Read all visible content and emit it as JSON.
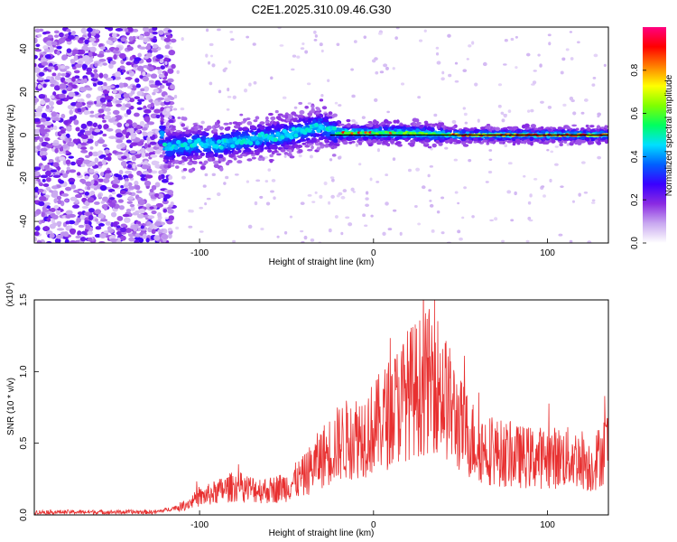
{
  "title": "C2E1.2025.310.09.46.G30",
  "chart_data": [
    {
      "type": "heatmap",
      "name": "spectrogram",
      "xlabel": "Height of straight line (km)",
      "ylabel": "Frequency (Hz)",
      "xlim": [
        -195,
        135
      ],
      "ylim": [
        -50,
        50
      ],
      "xticks": [
        -100,
        0,
        100
      ],
      "yticks": [
        -40,
        -20,
        0,
        20,
        40
      ],
      "xtick_labels": [
        "-100",
        "0",
        "100"
      ],
      "ytick_labels": [
        "-40",
        "-20",
        "0",
        "20",
        "40"
      ],
      "colorbar": {
        "label": "Normalized spectral amplitude",
        "range": [
          0,
          1
        ],
        "ticks": [
          0.0,
          0.2,
          0.4,
          0.6,
          0.8
        ],
        "tick_labels": [
          "0.0",
          "0.2",
          "0.4",
          "0.6",
          "0.8"
        ],
        "colors": [
          "#ffffff",
          "#c9a8f0",
          "#8a2be2",
          "#3a00ff",
          "#0060ff",
          "#00e0ff",
          "#00ff60",
          "#80ff00",
          "#ffff00",
          "#ff8000",
          "#ff0000",
          "#ff0080"
        ]
      },
      "signal_track": [
        {
          "x": -120,
          "y": -6
        },
        {
          "x": -110,
          "y": -5
        },
        {
          "x": -100,
          "y": -4
        },
        {
          "x": -90,
          "y": -5
        },
        {
          "x": -80,
          "y": -3
        },
        {
          "x": -70,
          "y": -2
        },
        {
          "x": -60,
          "y": -1
        },
        {
          "x": -50,
          "y": 0
        },
        {
          "x": -40,
          "y": 2
        },
        {
          "x": -30,
          "y": 4
        },
        {
          "x": -22,
          "y": 1
        },
        {
          "x": -10,
          "y": 1
        },
        {
          "x": 0,
          "y": 1
        },
        {
          "x": 20,
          "y": 1
        },
        {
          "x": 50,
          "y": 0
        },
        {
          "x": 80,
          "y": 0
        },
        {
          "x": 110,
          "y": 0
        },
        {
          "x": 135,
          "y": 0
        }
      ],
      "reference_line_y": 0
    },
    {
      "type": "line",
      "name": "snr",
      "xlabel": "Height of straight line (km)",
      "ylabel": "SNR (10 * v/v)",
      "y_multiplier": "(x10⁴)",
      "xlim": [
        -195,
        135
      ],
      "ylim": [
        0,
        1.5
      ],
      "xticks": [
        -100,
        0,
        100
      ],
      "yticks": [
        0.0,
        0.5,
        1.0,
        1.5
      ],
      "xtick_labels": [
        "-100",
        "0",
        "100"
      ],
      "ytick_labels": [
        "0.0",
        "0.5",
        "1.0",
        "1.5"
      ],
      "color": "#e83030",
      "envelope": [
        {
          "x": -195,
          "y": 0.02
        },
        {
          "x": -150,
          "y": 0.02
        },
        {
          "x": -125,
          "y": 0.02
        },
        {
          "x": -110,
          "y": 0.06
        },
        {
          "x": -100,
          "y": 0.12
        },
        {
          "x": -90,
          "y": 0.16
        },
        {
          "x": -80,
          "y": 0.2
        },
        {
          "x": -70,
          "y": 0.18
        },
        {
          "x": -60,
          "y": 0.17
        },
        {
          "x": -50,
          "y": 0.2
        },
        {
          "x": -40,
          "y": 0.27
        },
        {
          "x": -30,
          "y": 0.4
        },
        {
          "x": -20,
          "y": 0.5
        },
        {
          "x": -10,
          "y": 0.55
        },
        {
          "x": 0,
          "y": 0.6
        },
        {
          "x": 10,
          "y": 0.72
        },
        {
          "x": 20,
          "y": 0.85
        },
        {
          "x": 30,
          "y": 0.92
        },
        {
          "x": 35,
          "y": 0.95
        },
        {
          "x": 40,
          "y": 0.85
        },
        {
          "x": 50,
          "y": 0.62
        },
        {
          "x": 60,
          "y": 0.48
        },
        {
          "x": 70,
          "y": 0.44
        },
        {
          "x": 80,
          "y": 0.41
        },
        {
          "x": 90,
          "y": 0.4
        },
        {
          "x": 100,
          "y": 0.4
        },
        {
          "x": 110,
          "y": 0.4
        },
        {
          "x": 120,
          "y": 0.39
        },
        {
          "x": 125,
          "y": 0.33
        },
        {
          "x": 135,
          "y": 0.5
        }
      ],
      "peak": {
        "x": 35,
        "y": 1.52
      }
    }
  ]
}
